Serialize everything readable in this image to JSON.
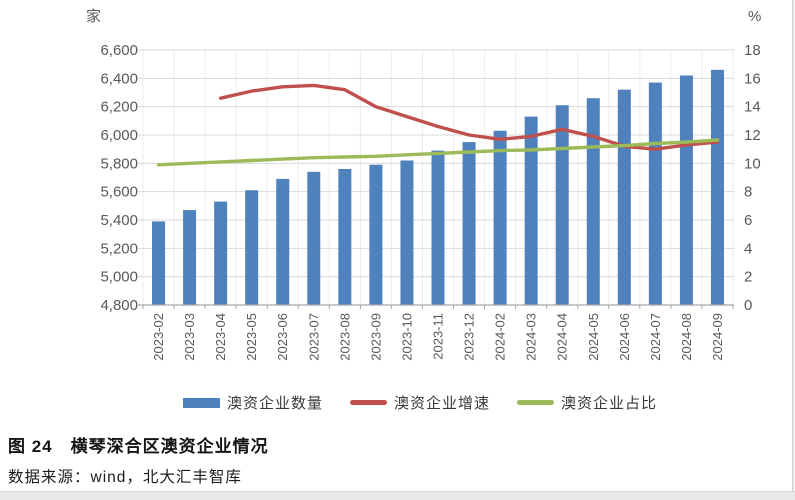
{
  "chart_data": {
    "type": "bar",
    "title": "横琴深合区澳资企业情况",
    "categories": [
      "2023-02",
      "2023-03",
      "2023-04",
      "2023-05",
      "2023-06",
      "2023-07",
      "2023-08",
      "2023-09",
      "2023-10",
      "2023-11",
      "2023-12",
      "2024-02",
      "2024-03",
      "2024-04",
      "2024-05",
      "2024-06",
      "2024-07",
      "2024-08",
      "2024-09"
    ],
    "series": [
      {
        "name": "澳资企业数量",
        "type": "bar",
        "axis": "left",
        "color": "#4F81BD",
        "values": [
          5390,
          5470,
          5530,
          5610,
          5690,
          5740,
          5760,
          5790,
          5820,
          5890,
          5950,
          6030,
          6130,
          6210,
          6260,
          6320,
          6370,
          6420,
          6460
        ]
      },
      {
        "name": "澳资企业增速",
        "type": "line",
        "axis": "right",
        "color": "#C0504D",
        "values": [
          null,
          null,
          14.6,
          15.1,
          15.4,
          15.5,
          15.2,
          14.0,
          13.3,
          12.6,
          12.0,
          11.7,
          11.9,
          12.4,
          11.9,
          11.2,
          11.0,
          11.3,
          11.5
        ]
      },
      {
        "name": "澳资企业占比",
        "type": "line",
        "axis": "right",
        "color": "#9BBB59",
        "values": [
          9.9,
          10.0,
          10.1,
          10.2,
          10.3,
          10.4,
          10.45,
          10.5,
          10.6,
          10.7,
          10.8,
          10.9,
          10.95,
          11.05,
          11.15,
          11.25,
          11.4,
          11.5,
          11.65
        ]
      }
    ],
    "left_axis": {
      "unit": "家",
      "min": 4800,
      "max": 6600,
      "step": 200
    },
    "right_axis": {
      "unit": "%",
      "min": 0,
      "max": 18,
      "step": 2
    },
    "grid": true,
    "legend_position": "bottom"
  },
  "caption": {
    "title": "图 24　横琴深合区澳资企业情况",
    "source": "数据来源：wind，北大汇丰智库"
  },
  "colors": {
    "bar": "#4F81BD",
    "growth_line": "#C0504D",
    "share_line": "#9BBB59",
    "gridline": "#d9d9d9",
    "vertical_gridline": "#ececec",
    "axis_line": "#a6a6a6",
    "axis_text": "#595959"
  }
}
